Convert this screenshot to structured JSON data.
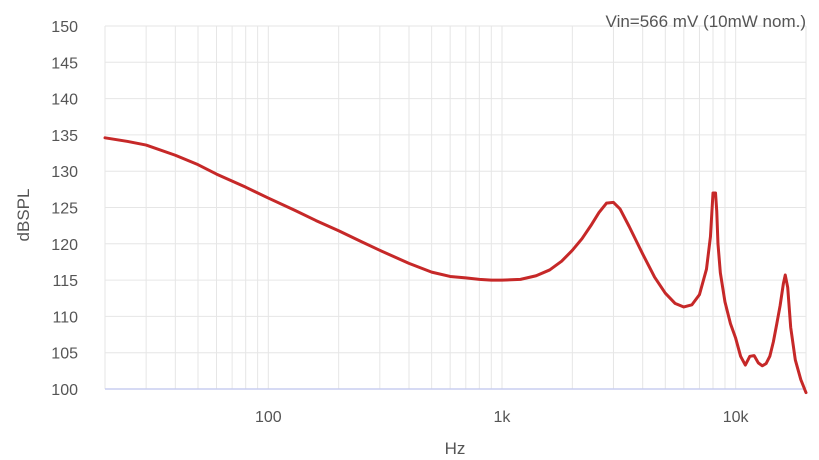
{
  "chart_data": {
    "type": "line",
    "title": "",
    "annotation": "Vin=566 mV (10mW nom.)",
    "xlabel": "Hz",
    "ylabel": "dBSPL",
    "x_scale": "log",
    "xlim": [
      20,
      20000
    ],
    "ylim": [
      100,
      150
    ],
    "x_ticks": [
      {
        "value": 100,
        "label": "100"
      },
      {
        "value": 1000,
        "label": "1k"
      },
      {
        "value": 10000,
        "label": "10k"
      }
    ],
    "y_ticks": [
      {
        "value": 100,
        "label": "100"
      },
      {
        "value": 105,
        "label": "105"
      },
      {
        "value": 110,
        "label": "110"
      },
      {
        "value": 115,
        "label": "115"
      },
      {
        "value": 120,
        "label": "120"
      },
      {
        "value": 125,
        "label": "125"
      },
      {
        "value": 130,
        "label": "130"
      },
      {
        "value": 135,
        "label": "135"
      },
      {
        "value": 140,
        "label": "140"
      },
      {
        "value": 145,
        "label": "145"
      },
      {
        "value": 150,
        "label": "150"
      }
    ],
    "grid": true,
    "colors": {
      "line": "#c62828",
      "grid": "#e6e6e6",
      "axis": "#c8cdf0"
    },
    "series": [
      {
        "x": [
          20,
          25,
          30,
          40,
          50,
          60,
          80,
          100,
          130,
          160,
          200,
          250,
          300,
          400,
          500,
          600,
          700,
          800,
          900,
          1000,
          1200,
          1400,
          1600,
          1800,
          2000,
          2200,
          2400,
          2600,
          2800,
          3000,
          3200,
          3500,
          4000,
          4500,
          5000,
          5500,
          6000,
          6500,
          7000,
          7500,
          7800,
          8000,
          8100,
          8200,
          8300,
          8400,
          8600,
          9000,
          9500,
          10000,
          10500,
          11000,
          11500,
          12000,
          12500,
          13000,
          13500,
          14000,
          14500,
          15000,
          15500,
          16000,
          16300,
          16700,
          17200,
          18000,
          19000,
          20000
        ],
        "y": [
          134.6,
          134.1,
          133.6,
          132.2,
          130.9,
          129.6,
          127.8,
          126.3,
          124.6,
          123.2,
          121.8,
          120.3,
          119.1,
          117.3,
          116.1,
          115.5,
          115.3,
          115.1,
          115.0,
          115.0,
          115.1,
          115.6,
          116.4,
          117.6,
          119.1,
          120.7,
          122.5,
          124.3,
          125.6,
          125.7,
          124.8,
          122.4,
          118.6,
          115.4,
          113.2,
          111.8,
          111.3,
          111.6,
          113.0,
          116.5,
          121.0,
          127.0,
          127.0,
          127.0,
          124.5,
          120.0,
          116.0,
          112.0,
          109.0,
          107.0,
          104.5,
          103.3,
          104.5,
          104.6,
          103.6,
          103.2,
          103.5,
          104.5,
          106.5,
          109.0,
          111.5,
          114.5,
          115.7,
          114.0,
          108.5,
          104.0,
          101.3,
          99.5
        ]
      }
    ]
  }
}
